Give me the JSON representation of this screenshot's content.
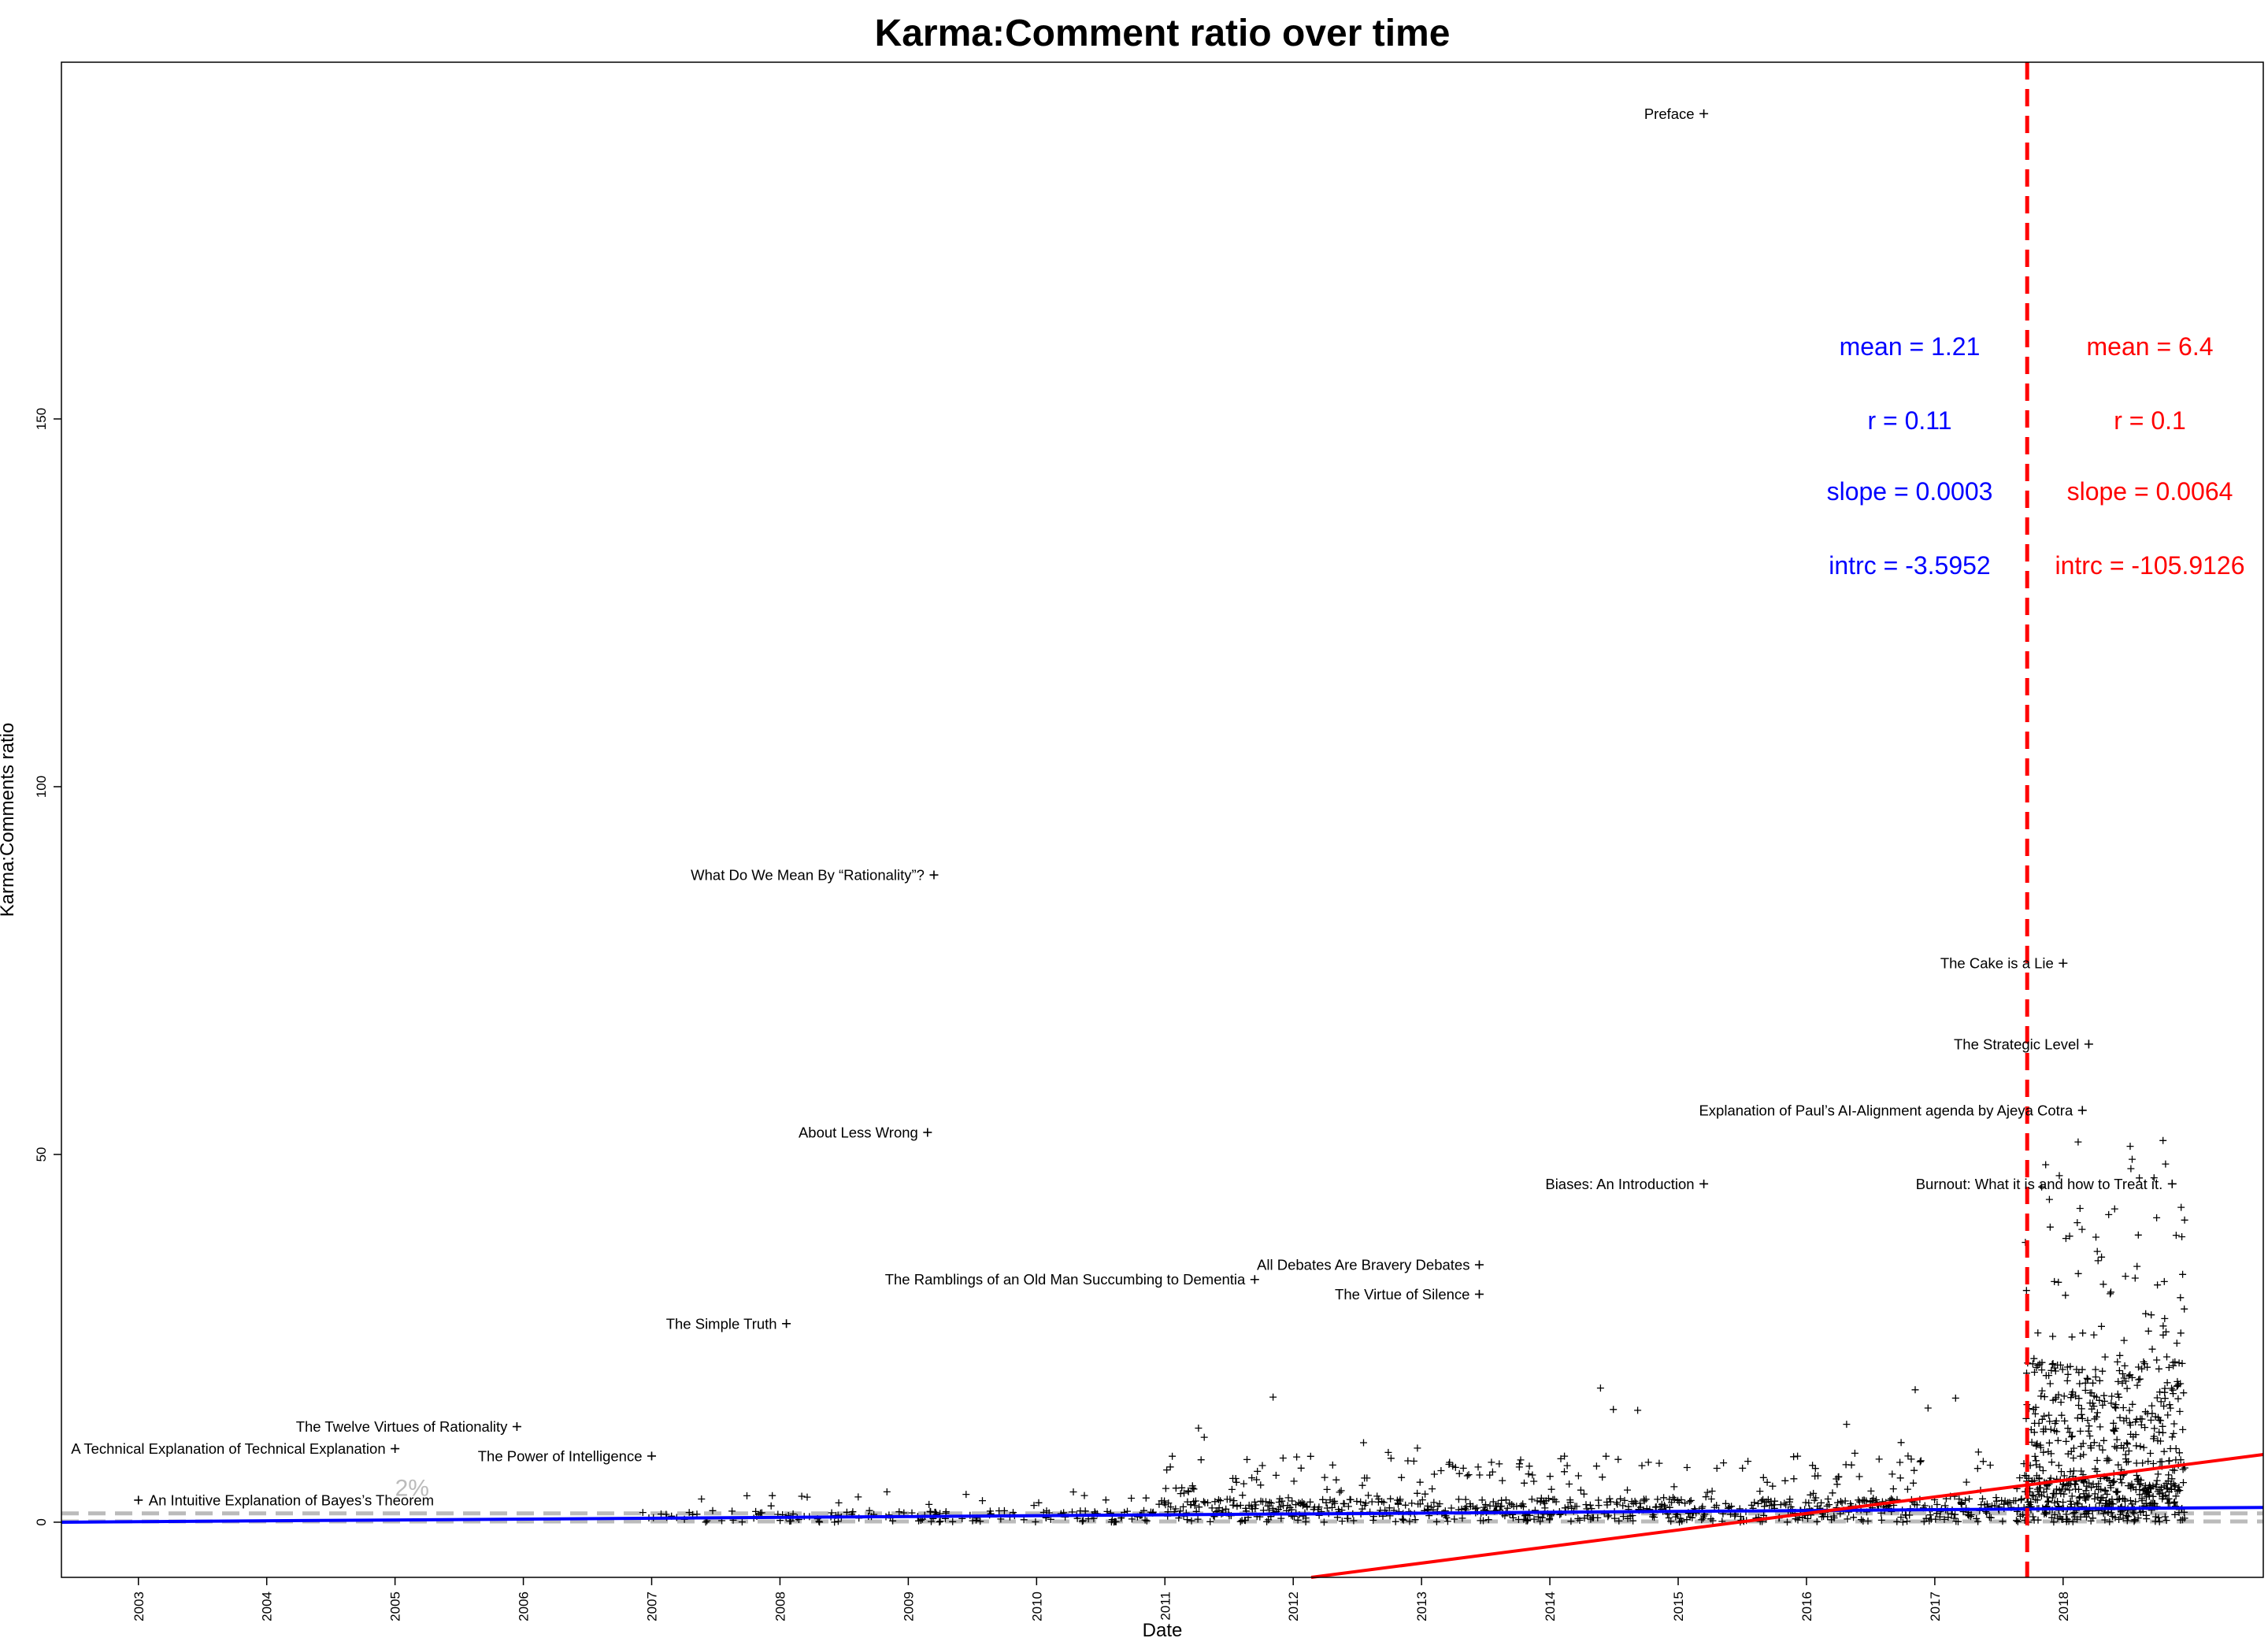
{
  "chart_data": {
    "type": "scatter",
    "title": "Karma:Comment ratio over time",
    "xlabel": "Date",
    "ylabel": "Karma:Comments ratio",
    "xlim": [
      2002.4,
      2019.56
    ],
    "ylim": [
      -7.5,
      198.5
    ],
    "x_ticks": [
      "2003",
      "2004",
      "2005",
      "2006",
      "2007",
      "2008",
      "2009",
      "2010",
      "2011",
      "2012",
      "2013",
      "2014",
      "2015",
      "2016",
      "2017",
      "2018"
    ],
    "y_ticks": [
      "0",
      "50",
      "100",
      "150"
    ],
    "marker": "+",
    "cutoff_date": 2017.72,
    "cutoff_color": "#ff0000",
    "percentile_label": "2%",
    "percentile_lines": [
      1.2,
      0.1
    ],
    "fits": [
      {
        "color": "#0000ff",
        "slope": 0.0003,
        "intercept": -3.5952,
        "x_from": 2002.4,
        "x_to": 2019.56
      },
      {
        "color": "#ff0000",
        "slope": 0.0064,
        "intercept": -105.9126,
        "x_from": 2012.14,
        "x_to": 2019.56
      }
    ],
    "stats": {
      "before": {
        "color": "#0000ff",
        "mean": "mean = 1.21",
        "r": "r = 0.11",
        "slope": "slope = 0.0003",
        "intrc": "intrc = -3.5952"
      },
      "after": {
        "color": "#ff0000",
        "mean": "mean = 6.4",
        "r": "r = 0.1",
        "slope": "slope = 0.0064",
        "intrc": "intrc = -105.9126"
      }
    },
    "labeled_points": [
      {
        "label": "Preface",
        "x": 2015.2,
        "y": 191.5
      },
      {
        "label": "What Do We Mean By “Rationality”?",
        "x": 2009.2,
        "y": 88
      },
      {
        "label": "The Cake is a Lie",
        "x": 2018.0,
        "y": 76
      },
      {
        "label": "The Strategic Level",
        "x": 2018.2,
        "y": 65
      },
      {
        "label": "Explanation of Paul’s AI-Alignment agenda by Ajeya Cotra",
        "x": 2018.15,
        "y": 56
      },
      {
        "label": "About Less Wrong",
        "x": 2009.15,
        "y": 53
      },
      {
        "label": "Biases: An Introduction",
        "x": 2015.2,
        "y": 46
      },
      {
        "label": "Burnout: What it is and how to Treat it.",
        "x": 2018.85,
        "y": 46
      },
      {
        "label": "All Debates Are Bravery Debates",
        "x": 2013.45,
        "y": 35
      },
      {
        "label": "The Ramblings of an Old Man Succumbing to Dementia",
        "x": 2011.7,
        "y": 33
      },
      {
        "label": "The Virtue of Silence",
        "x": 2013.45,
        "y": 31
      },
      {
        "label": "The Simple Truth",
        "x": 2008.05,
        "y": 27
      },
      {
        "label": "The Twelve Virtues of Rationality",
        "x": 2005.95,
        "y": 13
      },
      {
        "label": "A Technical Explanation of Technical Explanation",
        "x": 2005.0,
        "y": 10
      },
      {
        "label": "The Power of Intelligence",
        "x": 2007.0,
        "y": 9
      },
      {
        "label": "An Intuitive Explanation of Bayes’s Theorem",
        "x": 2003.0,
        "y": 3
      }
    ],
    "legend": "none",
    "grid": false
  }
}
